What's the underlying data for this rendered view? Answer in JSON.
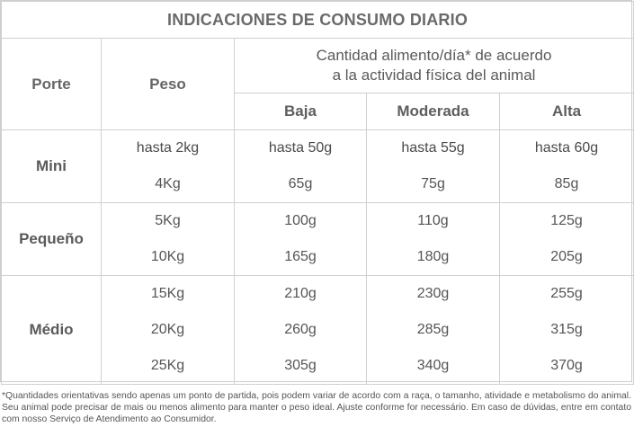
{
  "title": "INDICACIONES DE CONSUMO DIARIO",
  "headers": {
    "size": "Porte",
    "weight": "Peso",
    "quantity_line1": "Cantidad alimento/día* de acuerdo",
    "quantity_line2": "a la actividad física del animal",
    "low": "Baja",
    "moderate": "Moderada",
    "high": "Alta"
  },
  "groups": [
    {
      "size": "Mini",
      "rows": [
        {
          "weight": "hasta 2kg",
          "low": "hasta 50g",
          "moderate": "hasta 55g",
          "high": "hasta 60g"
        },
        {
          "weight": "4Kg",
          "low": "65g",
          "moderate": "75g",
          "high": "85g"
        }
      ]
    },
    {
      "size": "Pequeño",
      "rows": [
        {
          "weight": "5Kg",
          "low": "100g",
          "moderate": "110g",
          "high": "125g"
        },
        {
          "weight": "10Kg",
          "low": "165g",
          "moderate": "180g",
          "high": "205g"
        }
      ]
    },
    {
      "size": "Médio",
      "rows": [
        {
          "weight": "15Kg",
          "low": "210g",
          "moderate": "230g",
          "high": "255g"
        },
        {
          "weight": "20Kg",
          "low": "260g",
          "moderate": "285g",
          "high": "315g"
        },
        {
          "weight": "25Kg",
          "low": "305g",
          "moderate": "340g",
          "high": "370g"
        }
      ]
    }
  ],
  "footnote": "*Quantidades orientativas sendo apenas um ponto de partida, pois podem variar de acordo com a raça, o tamanho, atividade e metabolismo do animal. Seu animal pode precisar de mais ou menos alimento para manter o peso ideal. Ajuste conforme for necessário. Em caso de dúvidas, entre em contato com nosso Serviço de Atendimento ao Consumidor."
}
